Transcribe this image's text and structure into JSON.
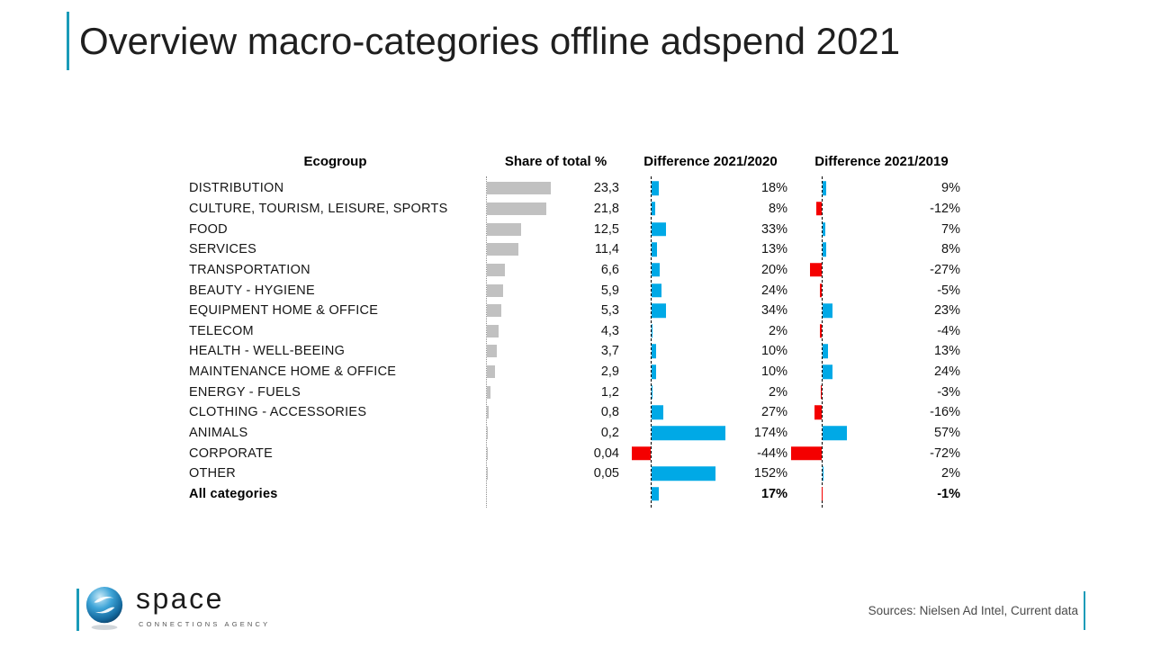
{
  "slide": {
    "title": "Overview macro-categories offline adspend 2021"
  },
  "table": {
    "headers": [
      "Ecogroup",
      "Share of total %",
      "Difference 2021/2020",
      "Difference 2021/2019"
    ],
    "rows": [
      {
        "name": "DISTRIBUTION",
        "share_label": "23,3",
        "share_value": 23.3,
        "d2020_label": "18%",
        "d2020_value": 18,
        "d2019_label": "9%",
        "d2019_value": 9,
        "bold": false
      },
      {
        "name": "CULTURE, TOURISM, LEISURE, SPORTS",
        "share_label": "21,8",
        "share_value": 21.8,
        "d2020_label": "8%",
        "d2020_value": 8,
        "d2019_label": "-12%",
        "d2019_value": -12,
        "bold": false
      },
      {
        "name": "FOOD",
        "share_label": "12,5",
        "share_value": 12.5,
        "d2020_label": "33%",
        "d2020_value": 33,
        "d2019_label": "7%",
        "d2019_value": 7,
        "bold": false
      },
      {
        "name": "SERVICES",
        "share_label": "11,4",
        "share_value": 11.4,
        "d2020_label": "13%",
        "d2020_value": 13,
        "d2019_label": "8%",
        "d2019_value": 8,
        "bold": false
      },
      {
        "name": "TRANSPORTATION",
        "share_label": "6,6",
        "share_value": 6.6,
        "d2020_label": "20%",
        "d2020_value": 20,
        "d2019_label": "-27%",
        "d2019_value": -27,
        "bold": false
      },
      {
        "name": "BEAUTY - HYGIENE",
        "share_label": "5,9",
        "share_value": 5.9,
        "d2020_label": "24%",
        "d2020_value": 24,
        "d2019_label": "-5%",
        "d2019_value": -5,
        "bold": false
      },
      {
        "name": "EQUIPMENT HOME & OFFICE",
        "share_label": "5,3",
        "share_value": 5.3,
        "d2020_label": "34%",
        "d2020_value": 34,
        "d2019_label": "23%",
        "d2019_value": 23,
        "bold": false
      },
      {
        "name": "TELECOM",
        "share_label": "4,3",
        "share_value": 4.3,
        "d2020_label": "2%",
        "d2020_value": 2,
        "d2019_label": "-4%",
        "d2019_value": -4,
        "bold": false
      },
      {
        "name": "HEALTH - WELL-BEEING",
        "share_label": "3,7",
        "share_value": 3.7,
        "d2020_label": "10%",
        "d2020_value": 10,
        "d2019_label": "13%",
        "d2019_value": 13,
        "bold": false
      },
      {
        "name": "MAINTENANCE HOME & OFFICE",
        "share_label": "2,9",
        "share_value": 2.9,
        "d2020_label": "10%",
        "d2020_value": 10,
        "d2019_label": "24%",
        "d2019_value": 24,
        "bold": false
      },
      {
        "name": "ENERGY - FUELS",
        "share_label": "1,2",
        "share_value": 1.2,
        "d2020_label": "2%",
        "d2020_value": 2,
        "d2019_label": "-3%",
        "d2019_value": -3,
        "bold": false
      },
      {
        "name": "CLOTHING - ACCESSORIES",
        "share_label": "0,8",
        "share_value": 0.8,
        "d2020_label": "27%",
        "d2020_value": 27,
        "d2019_label": "-16%",
        "d2019_value": -16,
        "bold": false
      },
      {
        "name": "ANIMALS",
        "share_label": "0,2",
        "share_value": 0.2,
        "d2020_label": "174%",
        "d2020_value": 174,
        "d2019_label": "57%",
        "d2019_value": 57,
        "bold": false
      },
      {
        "name": "CORPORATE",
        "share_label": "0,04",
        "share_value": 0.04,
        "d2020_label": "-44%",
        "d2020_value": -44,
        "d2019_label": "-72%",
        "d2019_value": -72,
        "bold": false
      },
      {
        "name": "OTHER",
        "share_label": "0,05",
        "share_value": 0.05,
        "d2020_label": "152%",
        "d2020_value": 152,
        "d2019_label": "2%",
        "d2019_value": 2,
        "bold": false
      },
      {
        "name": "All categories",
        "share_label": "",
        "share_value": null,
        "d2020_label": "17%",
        "d2020_value": 17,
        "d2019_label": "-1%",
        "d2019_value": -1,
        "bold": true
      }
    ]
  },
  "footer": {
    "brand": "space",
    "brand_tagline": "CONNECTIONS AGENCY",
    "sources": "Sources: Nielsen Ad Intel, Current data"
  },
  "colors": {
    "positive": "#00A9E6",
    "negative": "#F40000",
    "share_bar": "#C1C1C1",
    "accent_teal": "#1A9BB8",
    "title_text": "#1F1F1F",
    "source_text": "#4A4A4A"
  },
  "chart_data": {
    "type": "bar",
    "orientation": "horizontal",
    "title": "Overview macro-categories offline adspend 2021",
    "columns": [
      "Ecogroup",
      "Share of total %",
      "Difference 2021/2020",
      "Difference 2021/2019"
    ],
    "categories": [
      "DISTRIBUTION",
      "CULTURE, TOURISM, LEISURE, SPORTS",
      "FOOD",
      "SERVICES",
      "TRANSPORTATION",
      "BEAUTY - HYGIENE",
      "EQUIPMENT HOME & OFFICE",
      "TELECOM",
      "HEALTH - WELL-BEEING",
      "MAINTENANCE HOME & OFFICE",
      "ENERGY - FUELS",
      "CLOTHING - ACCESSORIES",
      "ANIMALS",
      "CORPORATE",
      "OTHER",
      "All categories"
    ],
    "series": [
      {
        "name": "Share of total %",
        "values": [
          23.3,
          21.8,
          12.5,
          11.4,
          6.6,
          5.9,
          5.3,
          4.3,
          3.7,
          2.9,
          1.2,
          0.8,
          0.2,
          0.04,
          0.05,
          null
        ]
      },
      {
        "name": "Difference 2021/2020 (%)",
        "values": [
          18,
          8,
          33,
          13,
          20,
          24,
          34,
          2,
          10,
          10,
          2,
          27,
          174,
          -44,
          152,
          17
        ]
      },
      {
        "name": "Difference 2021/2019 (%)",
        "values": [
          9,
          -12,
          7,
          8,
          -27,
          -5,
          23,
          -4,
          13,
          24,
          -3,
          -16,
          57,
          -72,
          2,
          -1
        ]
      }
    ],
    "legend": "none",
    "grid": "off",
    "notes": "Positive difference bars are blue, negative bars red; share bars gray. Dashed vertical zero axes per difference column; dotted axis for share column.",
    "source": "Sources: Nielsen Ad Intel, Current data"
  }
}
